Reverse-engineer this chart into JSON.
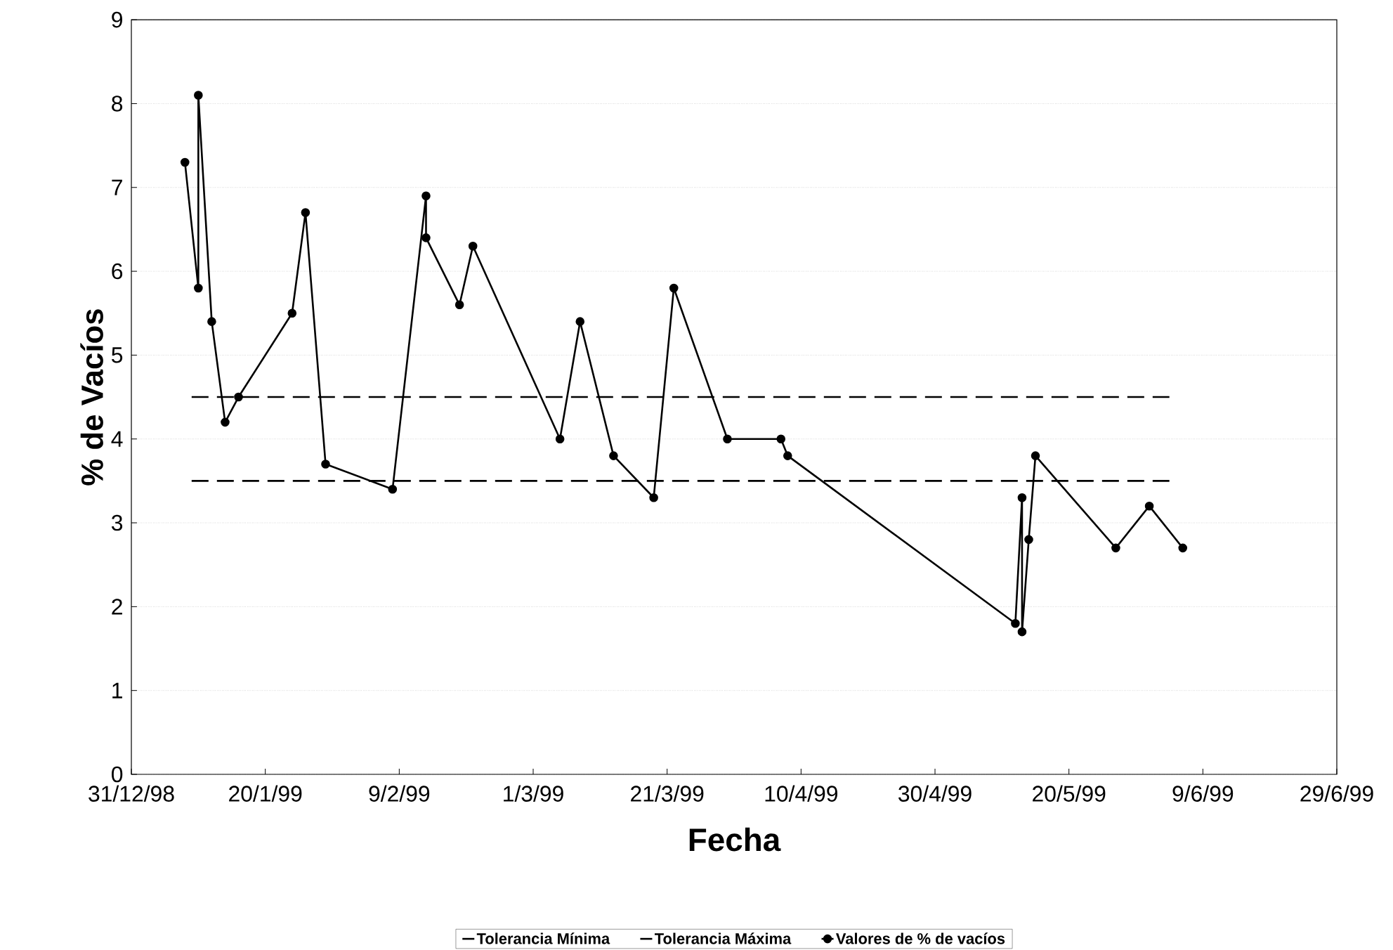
{
  "chart_data": {
    "type": "line",
    "xlabel": "Fecha",
    "ylabel": "% de Vacíos",
    "xlim": [
      "1998-12-31",
      "1999-06-29"
    ],
    "xticks": [
      {
        "value": "1998-12-31",
        "label": "31/12/98"
      },
      {
        "value": "1999-01-20",
        "label": "20/1/99"
      },
      {
        "value": "1999-02-09",
        "label": "9/2/99"
      },
      {
        "value": "1999-03-01",
        "label": "1/3/99"
      },
      {
        "value": "1999-03-21",
        "label": "21/3/99"
      },
      {
        "value": "1999-04-10",
        "label": "10/4/99"
      },
      {
        "value": "1999-04-30",
        "label": "30/4/99"
      },
      {
        "value": "1999-05-20",
        "label": "20/5/99"
      },
      {
        "value": "1999-06-09",
        "label": "9/6/99"
      },
      {
        "value": "1999-06-29",
        "label": "29/6/99"
      }
    ],
    "ylim": [
      0,
      9
    ],
    "yticks": [
      0,
      1,
      2,
      3,
      4,
      5,
      6,
      7,
      8,
      9
    ],
    "grid": "y",
    "legend": "bottom",
    "series": [
      {
        "name": "Tolerancia Mínima",
        "color": "#000000",
        "line_style": "dashed",
        "marker": "none",
        "x": [
          "1999-01-09",
          "1999-06-04"
        ],
        "values": [
          3.5,
          3.5
        ]
      },
      {
        "name": "Tolerancia Máxima",
        "color": "#000000",
        "line_style": "dashed",
        "marker": "none",
        "x": [
          "1999-01-09",
          "1999-06-04"
        ],
        "values": [
          4.5,
          4.5
        ]
      },
      {
        "name": "Valores de % de vacíos",
        "color": "#000000",
        "line_style": "solid",
        "marker": "circle",
        "x": [
          "1999-01-08",
          "1999-01-10",
          "1999-01-10",
          "1999-01-12",
          "1999-01-14",
          "1999-01-16",
          "1999-01-24",
          "1999-01-26",
          "1999-01-29",
          "1999-02-08",
          "1999-02-13",
          "1999-02-13",
          "1999-02-18",
          "1999-02-20",
          "1999-03-05",
          "1999-03-08",
          "1999-03-13",
          "1999-03-19",
          "1999-03-22",
          "1999-03-30",
          "1999-04-07",
          "1999-04-08",
          "1999-05-12",
          "1999-05-13",
          "1999-05-13",
          "1999-05-14",
          "1999-05-15",
          "1999-05-27",
          "1999-06-01",
          "1999-06-06"
        ],
        "values": [
          7.3,
          5.8,
          8.1,
          5.4,
          4.2,
          4.5,
          5.5,
          6.7,
          3.7,
          3.4,
          6.9,
          6.4,
          5.6,
          6.3,
          4.0,
          5.4,
          3.8,
          3.3,
          5.8,
          4.0,
          4.0,
          3.8,
          1.8,
          3.3,
          1.7,
          2.8,
          3.8,
          2.7,
          3.2,
          2.7
        ]
      }
    ]
  }
}
